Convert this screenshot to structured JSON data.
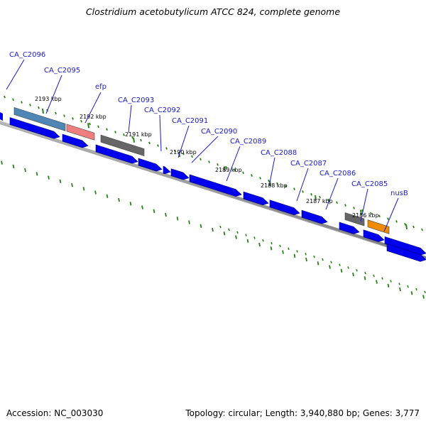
{
  "title": "Clostridium acetobutylicum ATCC 824, complete genome",
  "footer": {
    "accession": "Accession: NC_003030",
    "summary": "Topology: circular; Length: 3,940,880 bp; Genes: 3,777"
  },
  "colors": {
    "gene_blue": "#0000ee",
    "label_blue": "#1a1acc",
    "tick_green": "#2a7f1a",
    "backbone": "#7a7a7a",
    "feature_steelblue": "#4f86b5",
    "feature_pink": "#ef7f7f",
    "feature_gray": "#666666",
    "feature_orange": "#f08a00"
  },
  "kbp_labels": [
    "2193 kbp",
    "2192 kbp",
    "2191 kbp",
    "2190 kbp",
    "2189 kbp",
    "2188 kbp",
    "2187 kbp",
    "2186 kbp"
  ],
  "gene_labels": [
    "CA_C2096",
    "CA_C2095",
    "efp",
    "CA_C2093",
    "CA_C2092",
    "CA_C2091",
    "CA_C2090",
    "CA_C2089",
    "CA_C2088",
    "CA_C2087",
    "CA_C2086",
    "CA_C2085",
    "nusB"
  ]
}
